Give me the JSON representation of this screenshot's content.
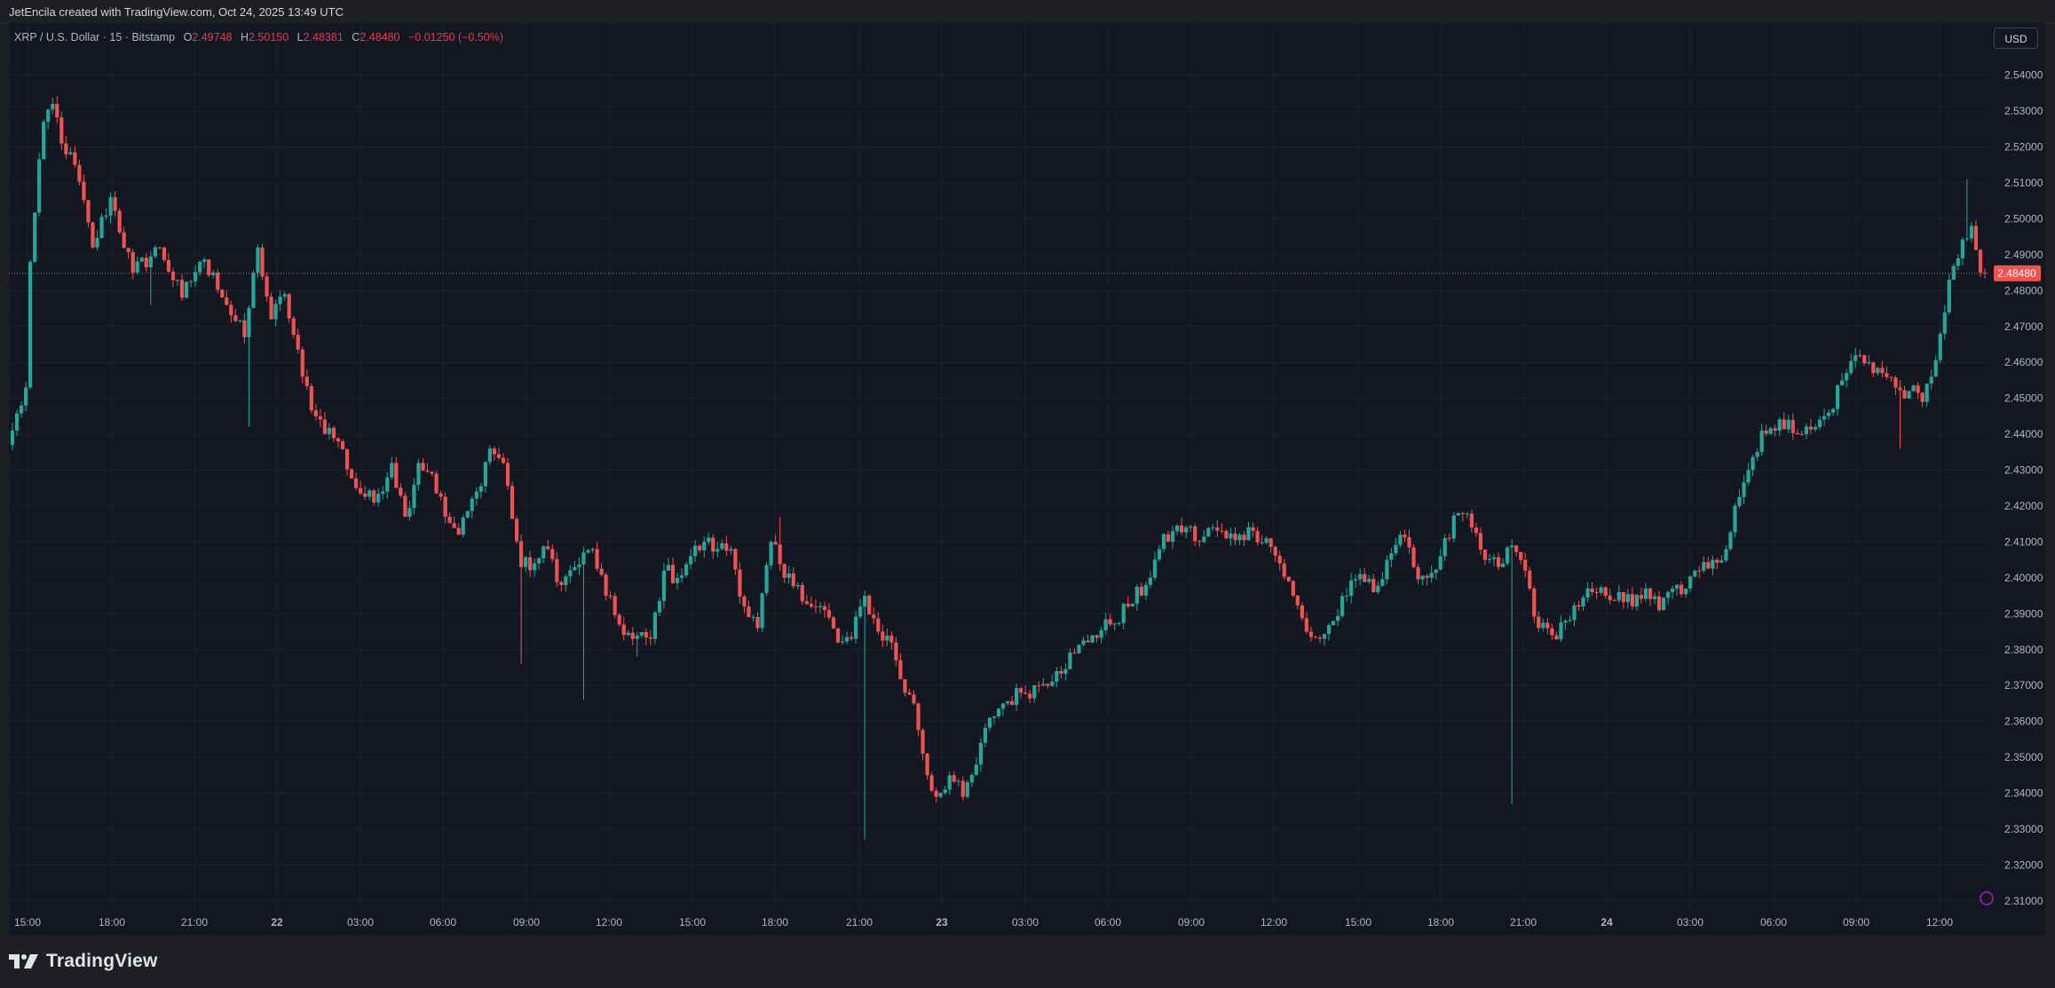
{
  "header": {
    "attribution": "JetEncila created with TradingView.com, Oct 24, 2025 13:49 UTC"
  },
  "legend": {
    "symbol": "XRP / U.S. Dollar · 15 · Bitstamp",
    "open_label": "O",
    "open": "2.49748",
    "high_label": "H",
    "high": "2.50150",
    "low_label": "L",
    "low": "2.48381",
    "close_label": "C",
    "close": "2.48480",
    "change": "−0.01250 (−0.50%)"
  },
  "currency_button": "USD",
  "last_price_label": "2.48480",
  "footer": {
    "brand": "TradingView"
  },
  "colors": {
    "up": "#26a69a",
    "down": "#ef5350",
    "background": "#131722",
    "grid": "#1e222d",
    "axis_text": "#b2b5be"
  },
  "chart_data": {
    "type": "candlestick",
    "title": "XRP / U.S. Dollar · 15 · Bitstamp",
    "y_axis_labels": [
      "2.54000",
      "2.53000",
      "2.52000",
      "2.51000",
      "2.50000",
      "2.49000",
      "2.48000",
      "2.47000",
      "2.46000",
      "2.45000",
      "2.44000",
      "2.43000",
      "2.42000",
      "2.41000",
      "2.40000",
      "2.39000",
      "2.38000",
      "2.37000",
      "2.36000",
      "2.35000",
      "2.34000",
      "2.33000",
      "2.32000",
      "2.31000"
    ],
    "x_axis_labels": [
      "15:00",
      "18:00",
      "21:00",
      "22",
      "03:00",
      "06:00",
      "09:00",
      "12:00",
      "15:00",
      "18:00",
      "21:00",
      "23",
      "03:00",
      "06:00",
      "09:00",
      "12:00",
      "15:00",
      "18:00",
      "21:00",
      "24",
      "03:00",
      "06:00",
      "09:00",
      "12:00"
    ],
    "ylim": [
      2.3075,
      2.5545
    ],
    "last_price": 2.4848,
    "grid": true,
    "anchors": [
      [
        0,
        2.441
      ],
      [
        3,
        2.453
      ],
      [
        4,
        2.488
      ],
      [
        7,
        2.527
      ],
      [
        9,
        2.532
      ],
      [
        12,
        2.518
      ],
      [
        14,
        2.515
      ],
      [
        18,
        2.492
      ],
      [
        22,
        2.506
      ],
      [
        27,
        2.485
      ],
      [
        33,
        2.492
      ],
      [
        38,
        2.478
      ],
      [
        42,
        2.488
      ],
      [
        45,
        2.485
      ],
      [
        48,
        2.476
      ],
      [
        52,
        2.467
      ],
      [
        55,
        2.492
      ],
      [
        58,
        2.472
      ],
      [
        61,
        2.479
      ],
      [
        65,
        2.456
      ],
      [
        68,
        2.445
      ],
      [
        73,
        2.438
      ],
      [
        77,
        2.425
      ],
      [
        81,
        2.421
      ],
      [
        85,
        2.432
      ],
      [
        88,
        2.417
      ],
      [
        91,
        2.432
      ],
      [
        94,
        2.429
      ],
      [
        97,
        2.417
      ],
      [
        100,
        2.412
      ],
      [
        104,
        2.424
      ],
      [
        107,
        2.436
      ],
      [
        110,
        2.432
      ],
      [
        114,
        2.403
      ],
      [
        117,
        2.404
      ],
      [
        120,
        2.408
      ],
      [
        123,
        2.398
      ],
      [
        126,
        2.403
      ],
      [
        130,
        2.408
      ],
      [
        133,
        2.395
      ],
      [
        136,
        2.387
      ],
      [
        139,
        2.383
      ],
      [
        143,
        2.383
      ],
      [
        146,
        2.402
      ],
      [
        149,
        2.4
      ],
      [
        152,
        2.406
      ],
      [
        155,
        2.41
      ],
      [
        158,
        2.408
      ],
      [
        161,
        2.408
      ],
      [
        164,
        2.392
      ],
      [
        167,
        2.386
      ],
      [
        170,
        2.41
      ],
      [
        173,
        2.4
      ],
      [
        176,
        2.398
      ],
      [
        179,
        2.392
      ],
      [
        182,
        2.391
      ],
      [
        185,
        2.382
      ],
      [
        188,
        2.383
      ],
      [
        191,
        2.395
      ],
      [
        194,
        2.385
      ],
      [
        197,
        2.382
      ],
      [
        200,
        2.368
      ],
      [
        202,
        2.365
      ],
      [
        205,
        2.345
      ],
      [
        207,
        2.339
      ],
      [
        210,
        2.345
      ],
      [
        213,
        2.339
      ],
      [
        216,
        2.348
      ],
      [
        219,
        2.361
      ],
      [
        222,
        2.365
      ],
      [
        226,
        2.368
      ],
      [
        230,
        2.37
      ],
      [
        234,
        2.374
      ],
      [
        238,
        2.379
      ],
      [
        242,
        2.384
      ],
      [
        246,
        2.387
      ],
      [
        250,
        2.392
      ],
      [
        254,
        2.398
      ],
      [
        257,
        2.408
      ],
      [
        260,
        2.413
      ],
      [
        263,
        2.414
      ],
      [
        266,
        2.41
      ],
      [
        269,
        2.414
      ],
      [
        272,
        2.411
      ],
      [
        275,
        2.412
      ],
      [
        278,
        2.413
      ],
      [
        281,
        2.411
      ],
      [
        284,
        2.404
      ],
      [
        287,
        2.395
      ],
      [
        290,
        2.385
      ],
      [
        293,
        2.383
      ],
      [
        296,
        2.388
      ],
      [
        299,
        2.395
      ],
      [
        302,
        2.401
      ],
      [
        305,
        2.396
      ],
      [
        308,
        2.405
      ],
      [
        311,
        2.412
      ],
      [
        314,
        2.403
      ],
      [
        317,
        2.4
      ],
      [
        320,
        2.406
      ],
      [
        324,
        2.418
      ],
      [
        327,
        2.414
      ],
      [
        330,
        2.405
      ],
      [
        333,
        2.403
      ],
      [
        336,
        2.409
      ],
      [
        339,
        2.402
      ],
      [
        342,
        2.386
      ],
      [
        345,
        2.384
      ],
      [
        348,
        2.388
      ],
      [
        351,
        2.392
      ],
      [
        354,
        2.396
      ],
      [
        357,
        2.395
      ],
      [
        360,
        2.396
      ],
      [
        363,
        2.392
      ],
      [
        366,
        2.397
      ],
      [
        369,
        2.391
      ],
      [
        372,
        2.397
      ],
      [
        375,
        2.397
      ],
      [
        378,
        2.402
      ],
      [
        381,
        2.405
      ],
      [
        384,
        2.408
      ],
      [
        386,
        2.42
      ],
      [
        389,
        2.43
      ],
      [
        392,
        2.441
      ],
      [
        395,
        2.441
      ],
      [
        398,
        2.444
      ],
      [
        401,
        2.44
      ],
      [
        404,
        2.442
      ],
      [
        407,
        2.446
      ],
      [
        410,
        2.455
      ],
      [
        413,
        2.462
      ],
      [
        416,
        2.46
      ],
      [
        419,
        2.457
      ],
      [
        422,
        2.453
      ],
      [
        425,
        2.452
      ],
      [
        428,
        2.449
      ],
      [
        430,
        2.456
      ],
      [
        432,
        2.468
      ],
      [
        434,
        2.483
      ],
      [
        436,
        2.489
      ],
      [
        439,
        2.498
      ],
      [
        441,
        2.485
      ]
    ],
    "spikes": [
      {
        "i": 31,
        "low": 2.476
      },
      {
        "i": 53,
        "low": 2.442
      },
      {
        "i": 172,
        "high": 2.417
      },
      {
        "i": 191,
        "low": 2.327
      },
      {
        "i": 336,
        "low": 2.337
      },
      {
        "i": 438,
        "high": 2.511
      },
      {
        "i": 423,
        "low": 2.436
      },
      {
        "i": 114,
        "low": 2.376
      },
      {
        "i": 128,
        "low": 2.366
      },
      {
        "i": 140,
        "low": 2.378
      }
    ]
  }
}
